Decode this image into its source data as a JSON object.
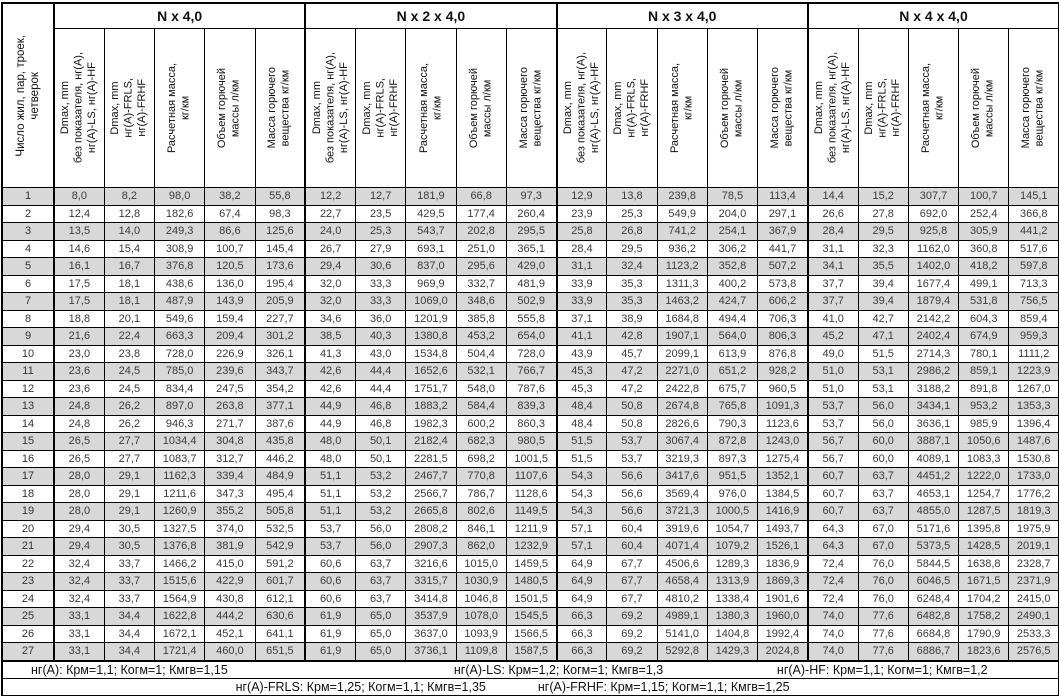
{
  "corner_header": "Число жил, пар, троек,\nчетверок",
  "groups": [
    {
      "label": "N x 4,0"
    },
    {
      "label": "N x 2 x 4,0"
    },
    {
      "label": "N x 3 x 4,0"
    },
    {
      "label": "N x 4 x 4,0"
    }
  ],
  "sub_headers": [
    "Dmax, mm\nбез показателя, нг(А),\nнг(А)-LS, нг(А)-HF",
    "Dmax, mm\nнг(А)-FRLS,\nнг(А)-FRHF",
    "Расчетная масса,\nкг/км",
    "Объем горючей\nмассы л/км",
    "Масса горючего\nвещества кг/км"
  ],
  "rows": [
    {
      "n": "1",
      "values": [
        "8,0",
        "8,2",
        "98,0",
        "38,2",
        "55,8",
        "12,2",
        "12,7",
        "181,9",
        "66,8",
        "97,3",
        "12,9",
        "13,8",
        "239,8",
        "78,5",
        "113,4",
        "14,4",
        "15,2",
        "307,7",
        "100,7",
        "145,1"
      ]
    },
    {
      "n": "2",
      "values": [
        "12,4",
        "12,8",
        "182,6",
        "67,4",
        "98,3",
        "22,7",
        "23,5",
        "429,5",
        "177,4",
        "260,4",
        "23,9",
        "25,3",
        "549,9",
        "204,0",
        "297,1",
        "26,6",
        "27,8",
        "692,0",
        "252,4",
        "366,8"
      ]
    },
    {
      "n": "3",
      "values": [
        "13,5",
        "14,0",
        "249,3",
        "86,6",
        "125,6",
        "24,0",
        "25,3",
        "543,7",
        "202,8",
        "295,5",
        "25,8",
        "26,8",
        "741,2",
        "254,1",
        "367,9",
        "28,4",
        "29,5",
        "925,8",
        "305,9",
        "441,2"
      ]
    },
    {
      "n": "4",
      "values": [
        "14,6",
        "15,4",
        "308,9",
        "100,7",
        "145,4",
        "26,7",
        "27,9",
        "693,1",
        "251,0",
        "365,1",
        "28,4",
        "29,5",
        "936,2",
        "306,2",
        "441,7",
        "31,1",
        "32,3",
        "1162,0",
        "360,8",
        "517,6"
      ]
    },
    {
      "n": "5",
      "values": [
        "16,1",
        "16,7",
        "376,8",
        "120,5",
        "173,6",
        "29,4",
        "30,6",
        "837,0",
        "295,6",
        "429,0",
        "31,1",
        "32,4",
        "1123,2",
        "352,8",
        "507,2",
        "34,1",
        "35,5",
        "1402,0",
        "418,2",
        "597,8"
      ]
    },
    {
      "n": "6",
      "values": [
        "17,5",
        "18,1",
        "438,6",
        "136,0",
        "195,4",
        "32,0",
        "33,3",
        "969,9",
        "332,7",
        "481,9",
        "33,9",
        "35,3",
        "1311,3",
        "400,2",
        "573,8",
        "37,7",
        "39,4",
        "1677,4",
        "499,1",
        "713,3"
      ]
    },
    {
      "n": "7",
      "values": [
        "17,5",
        "18,1",
        "487,9",
        "143,9",
        "205,9",
        "32,0",
        "33,3",
        "1069,0",
        "348,6",
        "502,9",
        "33,9",
        "35,3",
        "1463,2",
        "424,7",
        "606,2",
        "37,7",
        "39,4",
        "1879,4",
        "531,8",
        "756,5"
      ]
    },
    {
      "n": "8",
      "values": [
        "18,8",
        "20,1",
        "549,6",
        "159,4",
        "227,7",
        "34,6",
        "36,0",
        "1201,9",
        "385,8",
        "555,8",
        "37,1",
        "38,9",
        "1684,8",
        "494,4",
        "706,3",
        "41,0",
        "42,7",
        "2142,2",
        "604,3",
        "859,4"
      ]
    },
    {
      "n": "9",
      "values": [
        "21,6",
        "22,4",
        "663,3",
        "209,4",
        "301,2",
        "38,5",
        "40,3",
        "1380,8",
        "453,2",
        "654,0",
        "41,1",
        "42,8",
        "1907,1",
        "564,0",
        "806,3",
        "45,2",
        "47,1",
        "2402,4",
        "674,9",
        "959,3"
      ]
    },
    {
      "n": "10",
      "values": [
        "23,0",
        "23,8",
        "728,0",
        "226,9",
        "326,1",
        "41,3",
        "43,0",
        "1534,8",
        "504,4",
        "728,0",
        "43,9",
        "45,7",
        "2099,1",
        "613,9",
        "876,8",
        "49,0",
        "51,5",
        "2714,3",
        "780,1",
        "1111,2"
      ]
    },
    {
      "n": "11",
      "values": [
        "23,6",
        "24,5",
        "785,0",
        "239,6",
        "343,7",
        "42,6",
        "44,4",
        "1652,6",
        "532,1",
        "766,7",
        "45,3",
        "47,2",
        "2271,0",
        "651,2",
        "928,2",
        "51,0",
        "53,1",
        "2986,2",
        "859,1",
        "1223,9"
      ]
    },
    {
      "n": "12",
      "values": [
        "23,6",
        "24,5",
        "834,4",
        "247,5",
        "354,2",
        "42,6",
        "44,4",
        "1751,7",
        "548,0",
        "787,6",
        "45,3",
        "47,2",
        "2422,8",
        "675,7",
        "960,5",
        "51,0",
        "53,1",
        "3188,2",
        "891,8",
        "1267,0"
      ]
    },
    {
      "n": "13",
      "values": [
        "24,8",
        "26,2",
        "897,0",
        "263,8",
        "377,1",
        "44,9",
        "46,8",
        "1883,2",
        "584,4",
        "839,3",
        "48,4",
        "50,8",
        "2674,8",
        "765,8",
        "1091,3",
        "53,7",
        "56,0",
        "3434,1",
        "953,2",
        "1353,3"
      ]
    },
    {
      "n": "14",
      "values": [
        "24,8",
        "26,2",
        "946,3",
        "271,7",
        "387,6",
        "44,9",
        "46,8",
        "1982,3",
        "600,2",
        "860,3",
        "48,4",
        "50,8",
        "2826,6",
        "790,3",
        "1123,6",
        "53,7",
        "56,0",
        "3636,1",
        "985,9",
        "1396,4"
      ]
    },
    {
      "n": "15",
      "values": [
        "26,5",
        "27,7",
        "1034,4",
        "304,8",
        "435,8",
        "48,0",
        "50,1",
        "2182,4",
        "682,3",
        "980,5",
        "51,5",
        "53,7",
        "3067,4",
        "872,8",
        "1243,0",
        "56,7",
        "60,0",
        "3887,1",
        "1050,6",
        "1487,6"
      ]
    },
    {
      "n": "16",
      "values": [
        "26,5",
        "27,7",
        "1083,7",
        "312,7",
        "446,2",
        "48,0",
        "50,1",
        "2281,5",
        "698,2",
        "1001,5",
        "51,5",
        "53,7",
        "3219,3",
        "897,3",
        "1275,4",
        "56,7",
        "60,0",
        "4089,1",
        "1083,3",
        "1530,8"
      ]
    },
    {
      "n": "17",
      "values": [
        "28,0",
        "29,1",
        "1162,3",
        "339,4",
        "484,9",
        "51,1",
        "53,2",
        "2467,7",
        "770,8",
        "1107,6",
        "54,3",
        "56,6",
        "3417,6",
        "951,5",
        "1352,1",
        "60,7",
        "63,7",
        "4451,2",
        "1222,0",
        "1733,0"
      ]
    },
    {
      "n": "18",
      "values": [
        "28,0",
        "29,1",
        "1211,6",
        "347,3",
        "495,4",
        "51,1",
        "53,2",
        "2566,7",
        "786,7",
        "1128,6",
        "54,3",
        "56,6",
        "3569,4",
        "976,0",
        "1384,5",
        "60,7",
        "63,7",
        "4653,1",
        "1254,7",
        "1776,2"
      ]
    },
    {
      "n": "19",
      "values": [
        "28,0",
        "29,1",
        "1260,9",
        "355,2",
        "505,8",
        "51,1",
        "53,2",
        "2665,8",
        "802,6",
        "1149,5",
        "54,3",
        "56,6",
        "3721,3",
        "1000,5",
        "1416,9",
        "60,7",
        "63,7",
        "4855,0",
        "1287,5",
        "1819,3"
      ]
    },
    {
      "n": "20",
      "values": [
        "29,4",
        "30,5",
        "1327,5",
        "374,0",
        "532,5",
        "53,7",
        "56,0",
        "2808,2",
        "846,1",
        "1211,9",
        "57,1",
        "60,4",
        "3919,6",
        "1054,7",
        "1493,7",
        "64,3",
        "67,0",
        "5171,6",
        "1395,8",
        "1975,9"
      ]
    },
    {
      "n": "21",
      "values": [
        "29,4",
        "30,5",
        "1376,8",
        "381,9",
        "542,9",
        "53,7",
        "56,0",
        "2907,3",
        "862,0",
        "1232,9",
        "57,1",
        "60,4",
        "4071,4",
        "1079,2",
        "1526,1",
        "64,3",
        "67,0",
        "5373,5",
        "1428,5",
        "2019,1"
      ]
    },
    {
      "n": "22",
      "values": [
        "32,4",
        "33,7",
        "1466,2",
        "415,0",
        "591,2",
        "60,6",
        "63,7",
        "3216,6",
        "1015,0",
        "1459,5",
        "64,9",
        "67,7",
        "4506,6",
        "1289,3",
        "1836,9",
        "72,4",
        "76,0",
        "5844,5",
        "1638,8",
        "2328,7"
      ]
    },
    {
      "n": "23",
      "values": [
        "32,4",
        "33,7",
        "1515,6",
        "422,9",
        "601,7",
        "60,6",
        "63,7",
        "3315,7",
        "1030,9",
        "1480,5",
        "64,9",
        "67,7",
        "4658,4",
        "1313,9",
        "1869,3",
        "72,4",
        "76,0",
        "6046,5",
        "1671,5",
        "2371,9"
      ]
    },
    {
      "n": "24",
      "values": [
        "32,4",
        "33,7",
        "1564,9",
        "430,8",
        "612,1",
        "60,6",
        "63,7",
        "3414,8",
        "1046,8",
        "1501,5",
        "64,9",
        "67,7",
        "4810,2",
        "1338,4",
        "1901,6",
        "72,4",
        "76,0",
        "6248,4",
        "1704,2",
        "2415,0"
      ]
    },
    {
      "n": "25",
      "values": [
        "33,1",
        "34,4",
        "1622,8",
        "444,2",
        "630,6",
        "61,9",
        "65,0",
        "3537,9",
        "1078,0",
        "1545,5",
        "66,3",
        "69,2",
        "4989,1",
        "1380,3",
        "1960,0",
        "74,0",
        "77,6",
        "6482,8",
        "1758,2",
        "2490,1"
      ]
    },
    {
      "n": "26",
      "values": [
        "33,1",
        "34,4",
        "1672,1",
        "452,1",
        "641,1",
        "61,9",
        "65,0",
        "3637,0",
        "1093,9",
        "1566,5",
        "66,3",
        "69,2",
        "5141,0",
        "1404,8",
        "1992,4",
        "74,0",
        "77,6",
        "6684,8",
        "1790,9",
        "2533,3"
      ]
    },
    {
      "n": "27",
      "values": [
        "33,1",
        "34,4",
        "1721,4",
        "460,0",
        "651,5",
        "61,9",
        "65,0",
        "3736,1",
        "1109,8",
        "1587,5",
        "66,3",
        "69,2",
        "5292,8",
        "1429,3",
        "2024,8",
        "74,0",
        "77,6",
        "6886,7",
        "1823,6",
        "2576,5"
      ]
    }
  ],
  "footer": {
    "line1": [
      "нг(А): Крм=1,1;  Когм=1;  Кмгв=1,15",
      "нг(А)-LS: Крм=1,2;  Когм=1;  Кмгв=1,3",
      "нг(А)-HF: Крм=1,1;  Когм=1;  Кмгв=1,2"
    ],
    "line2": [
      "нг(А)-FRLS: Крм=1,25;  Когм=1,1;  Кмгв=1,35",
      "нг(А)-FRHF: Крм=1,15;  Когм=1,1;  Кмгв=1,25"
    ]
  },
  "colors": {
    "row_shaded": "#d8d8d8",
    "border": "#000000",
    "body_text": "#3a3a3a"
  }
}
